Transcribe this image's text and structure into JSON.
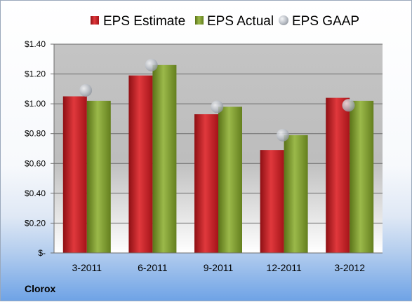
{
  "company": "Clorox",
  "colors": {
    "estimate": "#cc1f25",
    "actual": "#7e9b2c",
    "gaap": "#b9bec6"
  },
  "chart_data": {
    "type": "bar",
    "categories": [
      "3-2011",
      "6-2011",
      "9-2011",
      "12-2011",
      "3-2012"
    ],
    "series": [
      {
        "name": "EPS Estimate",
        "kind": "bar",
        "values": [
          1.05,
          1.19,
          0.93,
          0.69,
          1.04
        ]
      },
      {
        "name": "EPS Actual",
        "kind": "bar",
        "values": [
          1.02,
          1.26,
          0.98,
          0.79,
          1.02
        ]
      },
      {
        "name": "EPS GAAP",
        "kind": "marker",
        "values": [
          1.09,
          1.26,
          0.98,
          0.79,
          0.99
        ]
      }
    ],
    "yticks": [
      "$-",
      "$0.20",
      "$0.40",
      "$0.60",
      "$0.80",
      "$1.00",
      "$1.20",
      "$1.40"
    ],
    "ylim": [
      0,
      1.4
    ],
    "grid": true,
    "legend_position": "top"
  }
}
